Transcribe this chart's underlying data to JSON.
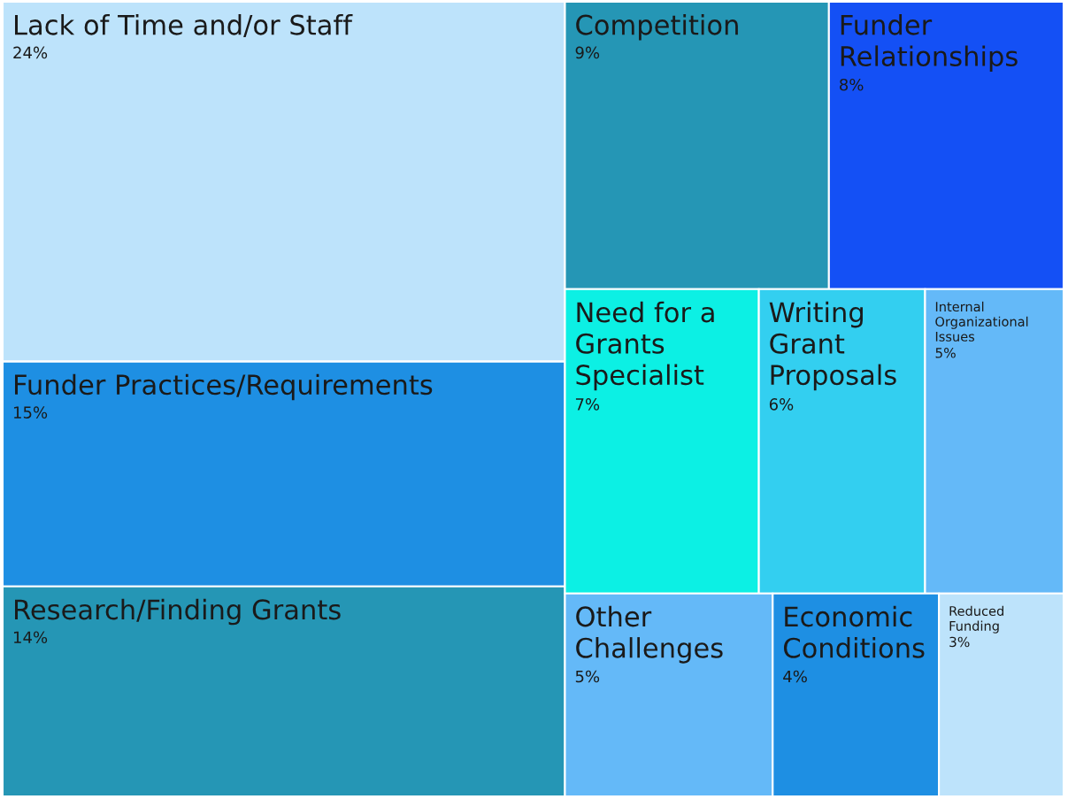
{
  "chart_data": {
    "type": "other",
    "categories": [
      "Lack of Time and/or Staff",
      "Funder Practices/Requirements",
      "Research/Finding Grants",
      "Competition",
      "Funder Relationships",
      "Need for a Grants Specialist",
      "Writing Grant Proposals",
      "Internal Organizational Issues",
      "Other Challenges",
      "Economic Conditions",
      "Reduced Funding"
    ],
    "values": [
      24,
      15,
      14,
      9,
      8,
      7,
      6,
      5,
      5,
      4,
      3
    ],
    "value_labels": [
      "24%",
      "15%",
      "14%",
      "9%",
      "8%",
      "7%",
      "6%",
      "5%",
      "5%",
      "4%",
      "3%"
    ],
    "colors": [
      "#bde3fb",
      "#1e8fe3",
      "#2596b5",
      "#2596b5",
      "#1450f5",
      "#0cf0e4",
      "#33cff0",
      "#64b9f8",
      "#64b9f8",
      "#1e8fe3",
      "#bde3fb"
    ]
  }
}
